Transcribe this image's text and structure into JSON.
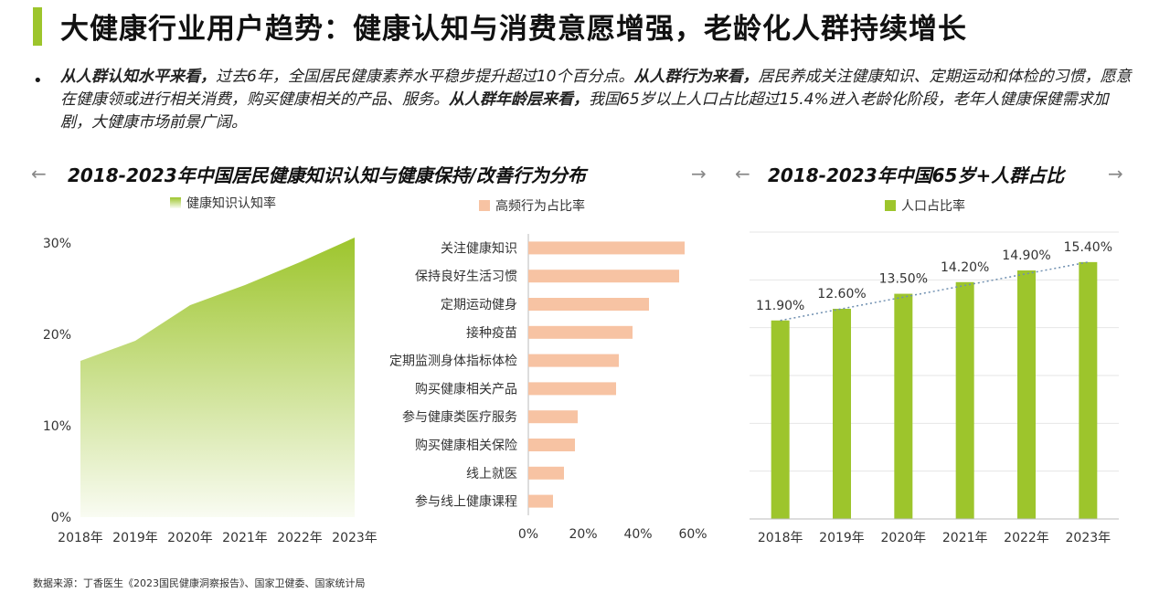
{
  "page": {
    "title": "大健康行业用户趋势：健康认知与消费意愿增强，老龄化人群持续增长",
    "summary": [
      {
        "bold": true,
        "text": "从人群认知水平来看，"
      },
      {
        "bold": false,
        "text": "过去6年，全国居民健康素养水平稳步提升超过10个百分点。"
      },
      {
        "bold": true,
        "text": "从人群行为来看，"
      },
      {
        "bold": false,
        "text": "居民养成关注健康知识、定期运动和体检的习惯，愿意在健康领或进行相关消费，购买健康相关的产品、服务。"
      },
      {
        "bold": true,
        "text": "从人群年龄层来看，"
      },
      {
        "bold": false,
        "text": "我国65岁以上人口占比超过15.4%进入老龄化阶段，老年人健康保健需求加剧，大健康市场前景广阔。"
      }
    ],
    "left_section_title": "2018-2023年中国居民健康知识认知与健康保持/改善行为分布",
    "right_section_title": "2018-2023年中国65岁+人群占比",
    "arrow_left": "←",
    "arrow_right": "→",
    "source": "数据来源：丁香医生《2023国民健康洞察报告》、国家卫健委、国家统计局",
    "colors": {
      "accent": "#9dc52c",
      "bar_peach": "#f7c3a3",
      "grid": "#e6e6e6"
    }
  },
  "chart_data": [
    {
      "type": "area",
      "title": "健康知识认知率",
      "legend": [
        "健康知识认知率"
      ],
      "categories": [
        "2018年",
        "2019年",
        "2020年",
        "2021年",
        "2022年",
        "2023年"
      ],
      "values": [
        17.1,
        19.3,
        23.2,
        25.4,
        27.9,
        30.6
      ],
      "ylim": [
        0,
        30
      ],
      "yticks": [
        0,
        10,
        20,
        30
      ],
      "ytick_labels": [
        "0%",
        "10%",
        "20%",
        "30%"
      ]
    },
    {
      "type": "bar",
      "orientation": "horizontal",
      "legend": [
        "高频行为占比率"
      ],
      "categories": [
        "关注健康知识",
        "保持良好生活习惯",
        "定期运动健身",
        "接种疫苗",
        "定期监测身体指标体检",
        "购买健康相关产品",
        "参与健康类医疗服务",
        "购买健康相关保险",
        "线上就医",
        "参与线上健康课程"
      ],
      "values": [
        57,
        55,
        44,
        38,
        33,
        32,
        18,
        17,
        13,
        9
      ],
      "xlim": [
        0,
        60
      ],
      "xticks": [
        0,
        20,
        40,
        60
      ],
      "xtick_labels": [
        "0%",
        "20%",
        "40%",
        "60%"
      ]
    },
    {
      "type": "bar",
      "legend": [
        "人口占比率"
      ],
      "categories": [
        "2018年",
        "2019年",
        "2020年",
        "2021年",
        "2022年",
        "2023年"
      ],
      "values": [
        11.9,
        12.6,
        13.5,
        14.2,
        14.9,
        15.4
      ],
      "labels": [
        "11.90%",
        "12.60%",
        "13.50%",
        "14.20%",
        "14.90%",
        "15.40%"
      ],
      "trendline": true
    }
  ]
}
